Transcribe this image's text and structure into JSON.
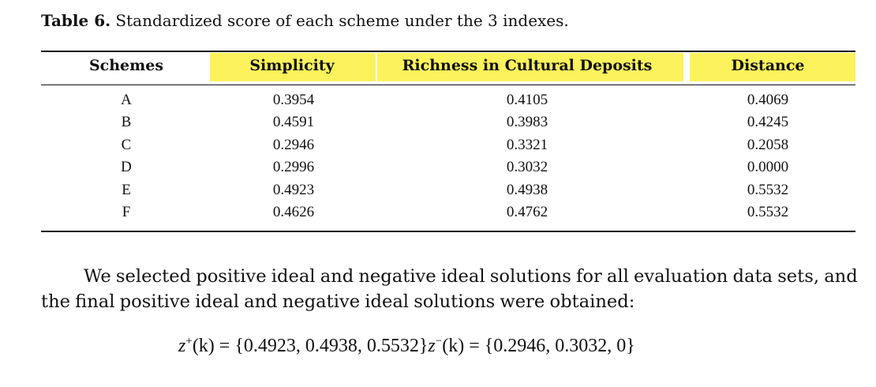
{
  "table": {
    "caption_label": "Table 6.",
    "caption_text": " Standardized score of each scheme under the 3 indexes.",
    "headers": [
      "Schemes",
      "Simplicity",
      "Richness in Cultural Deposits",
      "Distance"
    ],
    "rows": [
      [
        "A",
        "0.3954",
        "0.4105",
        "0.4069"
      ],
      [
        "B",
        "0.4591",
        "0.3983",
        "0.4245"
      ],
      [
        "C",
        "0.2946",
        "0.3321",
        "0.2058"
      ],
      [
        "D",
        "0.2996",
        "0.3032",
        "0.0000"
      ],
      [
        "E",
        "0.4923",
        "0.4938",
        "0.5532"
      ],
      [
        "F",
        "0.4626",
        "0.4762",
        "0.5532"
      ]
    ],
    "highlight_color": "#fcf25c"
  },
  "paragraph": "We selected positive ideal and negative ideal solutions for all evaluation data sets, and the final positive ideal and negative ideal solutions were obtained:",
  "formula": {
    "plus_var": "z",
    "plus_sup": "+",
    "plus_arg": "(k)",
    "plus_eq": " = ",
    "plus_set": "{0.4923, 0.4938, 0.5532}",
    "minus_var": "z",
    "minus_sup": "−",
    "minus_arg": "(k)",
    "minus_eq": " = ",
    "minus_set": "{0.2946, 0.3032, 0}"
  }
}
